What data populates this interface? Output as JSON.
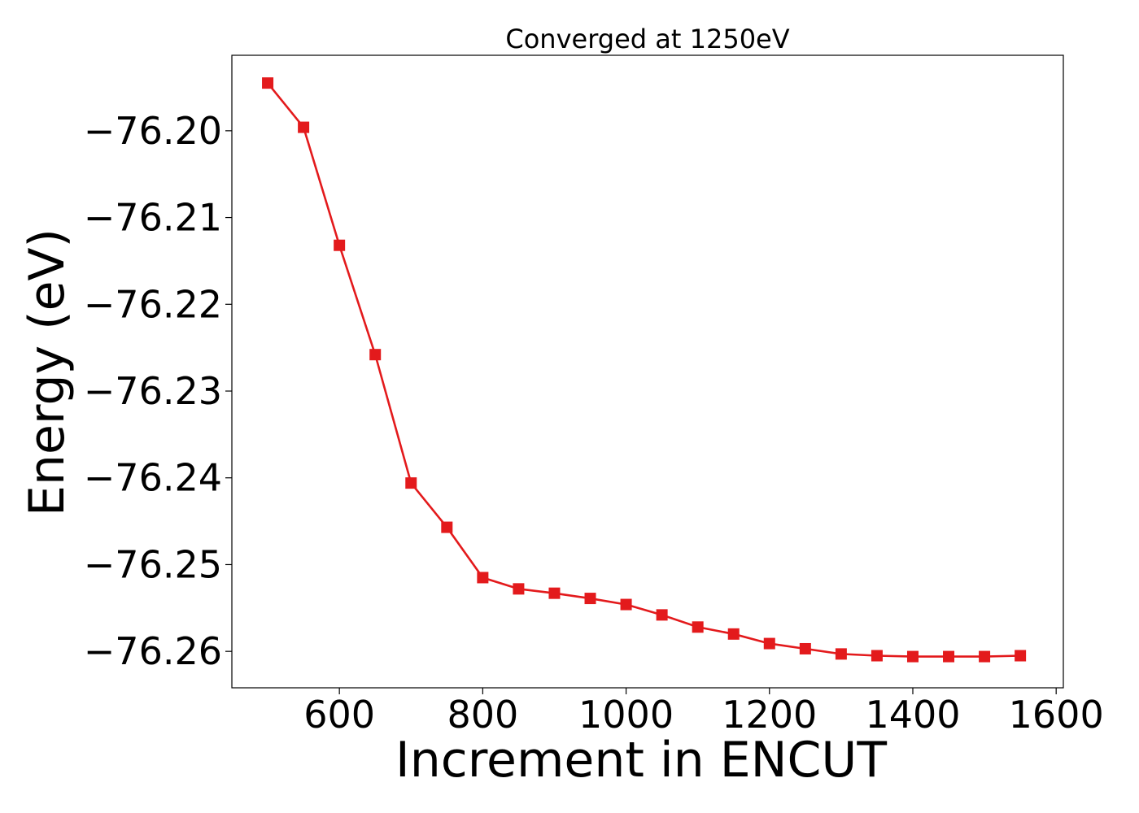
{
  "chart_data": {
    "type": "line",
    "title": "Converged at 1250eV",
    "xlabel": "Increment in ENCUT",
    "ylabel": "Energy (eV)",
    "xlim": [
      450,
      1610
    ],
    "ylim": [
      -76.2642,
      -76.1913
    ],
    "x_ticks": [
      600,
      800,
      1000,
      1200,
      1400,
      1600
    ],
    "x_tick_labels": [
      "600",
      "800",
      "1000",
      "1200",
      "1400",
      "1600"
    ],
    "y_ticks": [
      -76.2,
      -76.21,
      -76.22,
      -76.23,
      -76.24,
      -76.25,
      -76.26
    ],
    "y_tick_labels": [
      "−76.20",
      "−76.21",
      "−76.22",
      "−76.23",
      "−76.24",
      "−76.25",
      "−76.26"
    ],
    "grid": false,
    "series": [
      {
        "color": "#e31a1c",
        "marker": "square",
        "x": [
          500,
          550,
          600,
          650,
          700,
          750,
          800,
          850,
          900,
          950,
          1000,
          1050,
          1100,
          1150,
          1200,
          1250,
          1300,
          1350,
          1400,
          1450,
          1500,
          1550
        ],
        "y": [
          -76.1945,
          -76.1996,
          -76.2132,
          -76.2258,
          -76.2406,
          -76.2457,
          -76.2515,
          -76.2528,
          -76.2533,
          -76.2539,
          -76.2546,
          -76.2558,
          -76.2572,
          -76.258,
          -76.2591,
          -76.2597,
          -76.2603,
          -76.2605,
          -76.2606,
          -76.2606,
          -76.2606,
          -76.2605
        ]
      }
    ]
  }
}
